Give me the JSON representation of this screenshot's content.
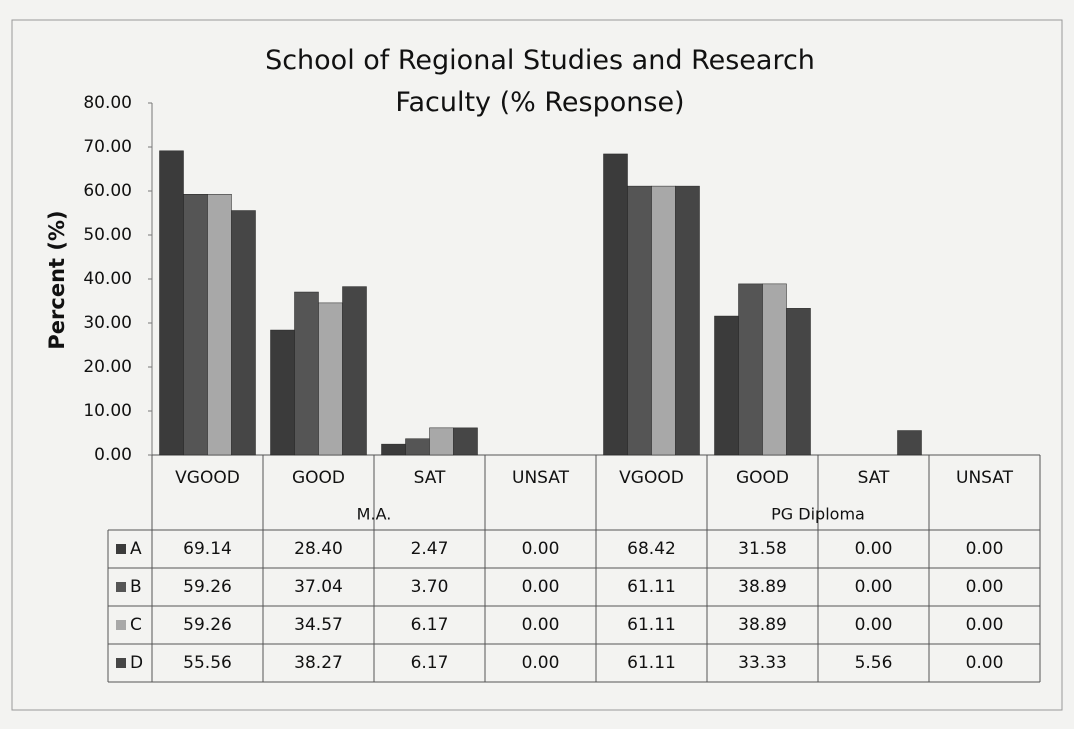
{
  "chart_data": {
    "type": "bar",
    "title": "School of Regional Studies and Research Faculty (% Response)",
    "y_label": "Percent (%)",
    "categories": [
      "VGOOD",
      "GOOD",
      "SAT",
      "UNSAT",
      "VGOOD",
      "GOOD",
      "SAT",
      "UNSAT"
    ],
    "groups": [
      {
        "name": "M.A.",
        "span": 4
      },
      {
        "name": "PG Diploma",
        "span": 4
      }
    ],
    "series": [
      {
        "name": "A",
        "color": "#3b3b3b",
        "values": [
          69.14,
          28.4,
          2.47,
          0,
          68.42,
          31.58,
          0,
          0
        ],
        "value_labels": [
          "69.14",
          "28.40",
          "2.47",
          "0.00",
          "68.42",
          "31.58",
          "0.00",
          "0.00"
        ]
      },
      {
        "name": "B",
        "color": "#555555",
        "values": [
          59.26,
          37.04,
          3.7,
          0,
          61.11,
          38.89,
          0,
          0
        ],
        "value_labels": [
          "59.26",
          "37.04",
          "3.70",
          "0.00",
          "61.11",
          "38.89",
          "0.00",
          "0.00"
        ]
      },
      {
        "name": "C",
        "color": "#a8a8a8",
        "values": [
          59.26,
          34.57,
          6.17,
          0,
          61.11,
          38.89,
          0,
          0
        ],
        "value_labels": [
          "59.26",
          "34.57",
          "6.17",
          "0.00",
          "61.11",
          "38.89",
          "0.00",
          "0.00"
        ]
      },
      {
        "name": "D",
        "color": "#464646",
        "values": [
          55.56,
          38.27,
          6.17,
          0,
          61.11,
          33.33,
          5.56,
          0
        ],
        "value_labels": [
          "55.56",
          "38.27",
          "6.17",
          "0.00",
          "61.11",
          "33.33",
          "5.56",
          "0.00"
        ]
      }
    ],
    "ylim": [
      0,
      80
    ],
    "yticks": [
      {
        "value": 0,
        "label": "0.00"
      },
      {
        "value": 10,
        "label": "10.00"
      },
      {
        "value": 20,
        "label": "20.00"
      },
      {
        "value": 30,
        "label": "30.00"
      },
      {
        "value": 40,
        "label": "40.00"
      },
      {
        "value": 50,
        "label": "50.00"
      },
      {
        "value": 60,
        "label": "60.00"
      },
      {
        "value": 70,
        "label": "70.00"
      },
      {
        "value": 80,
        "label": "80.00"
      }
    ],
    "grid": false
  }
}
